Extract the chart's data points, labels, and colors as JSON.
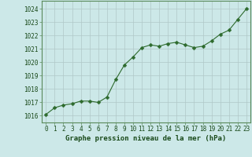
{
  "x": [
    0,
    1,
    2,
    3,
    4,
    5,
    6,
    7,
    8,
    9,
    10,
    11,
    12,
    13,
    14,
    15,
    16,
    17,
    18,
    19,
    20,
    21,
    22,
    23
  ],
  "y": [
    1016.1,
    1016.6,
    1016.8,
    1016.9,
    1017.1,
    1017.1,
    1017.0,
    1017.4,
    1018.7,
    1019.8,
    1020.4,
    1021.1,
    1021.3,
    1021.2,
    1021.4,
    1021.5,
    1021.3,
    1021.1,
    1021.2,
    1021.6,
    1022.1,
    1022.4,
    1023.2,
    1024.0
  ],
  "line_color": "#2d6a2d",
  "marker": "D",
  "marker_size": 2.5,
  "bg_color": "#cce8e8",
  "grid_color": "#b0c8c8",
  "xlabel": "Graphe pression niveau de la mer (hPa)",
  "xlabel_color": "#1a4a1a",
  "tick_color": "#1a4a1a",
  "ylim": [
    1015.5,
    1024.6
  ],
  "yticks": [
    1016,
    1017,
    1018,
    1019,
    1020,
    1021,
    1022,
    1023,
    1024
  ],
  "xlim": [
    -0.5,
    23.5
  ],
  "xticks": [
    0,
    1,
    2,
    3,
    4,
    5,
    6,
    7,
    8,
    9,
    10,
    11,
    12,
    13,
    14,
    15,
    16,
    17,
    18,
    19,
    20,
    21,
    22,
    23
  ],
  "spine_color": "#5a8a5a",
  "tick_fontsize": 5.5,
  "xlabel_fontsize": 6.5
}
